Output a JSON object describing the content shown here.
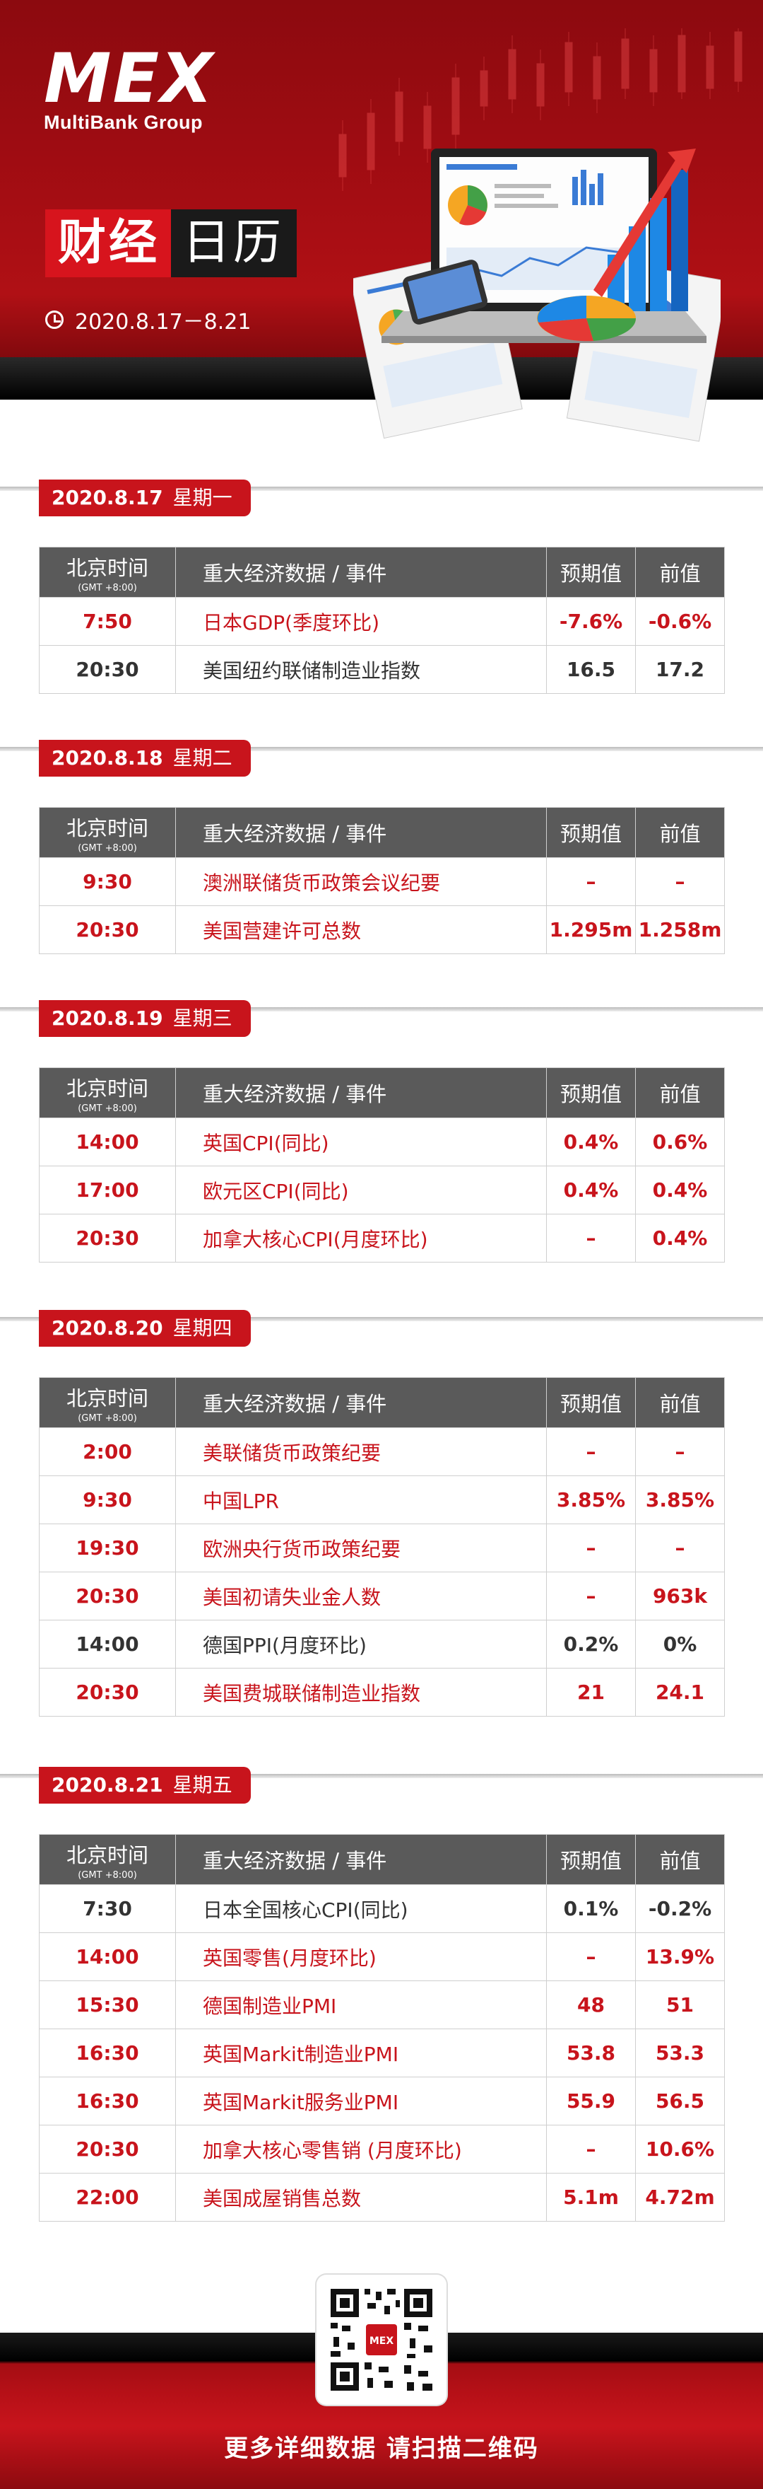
{
  "brand": {
    "logo": "MEX",
    "company": "MultiBank Group"
  },
  "title": {
    "part1": "财经",
    "part2": "日历"
  },
  "date_range": "2020.8.17－8.21",
  "table_headers": {
    "time": "北京时间",
    "time_sub": "(GMT +8:00)",
    "event": "重大经济数据 / 事件",
    "forecast": "预期值",
    "previous": "前值"
  },
  "days": [
    {
      "date": "2020.8.17",
      "weekday": "星期一",
      "rows": [
        {
          "time": "7:50",
          "event": "日本GDP(季度环比)",
          "forecast": "-7.6%",
          "previous": "-0.6%",
          "highlight": true
        },
        {
          "time": "20:30",
          "event": "美国纽约联储制造业指数",
          "forecast": "16.5",
          "previous": "17.2",
          "highlight": false
        }
      ]
    },
    {
      "date": "2020.8.18",
      "weekday": "星期二",
      "rows": [
        {
          "time": "9:30",
          "event": "澳洲联储货币政策会议纪要",
          "forecast": "–",
          "previous": "–",
          "highlight": true
        },
        {
          "time": "20:30",
          "event": "美国营建许可总数",
          "forecast": "1.295m",
          "previous": "1.258m",
          "highlight": true
        }
      ]
    },
    {
      "date": "2020.8.19",
      "weekday": "星期三",
      "rows": [
        {
          "time": "14:00",
          "event": "英国CPI(同比)",
          "forecast": "0.4%",
          "previous": "0.6%",
          "highlight": true
        },
        {
          "time": "17:00",
          "event": "欧元区CPI(同比)",
          "forecast": "0.4%",
          "previous": "0.4%",
          "highlight": true
        },
        {
          "time": "20:30",
          "event": "加拿大核心CPI(月度环比)",
          "forecast": "–",
          "previous": "0.4%",
          "highlight": true
        }
      ]
    },
    {
      "date": "2020.8.20",
      "weekday": "星期四",
      "rows": [
        {
          "time": "2:00",
          "event": "美联储货币政策纪要",
          "forecast": "–",
          "previous": "–",
          "highlight": true
        },
        {
          "time": "9:30",
          "event": "中国LPR",
          "forecast": "3.85%",
          "previous": "3.85%",
          "highlight": true
        },
        {
          "time": "19:30",
          "event": "欧洲央行货币政策纪要",
          "forecast": "–",
          "previous": "–",
          "highlight": true
        },
        {
          "time": "20:30",
          "event": "美国初请失业金人数",
          "forecast": "–",
          "previous": "963k",
          "highlight": true
        },
        {
          "time": "14:00",
          "event": "德国PPI(月度环比)",
          "forecast": "0.2%",
          "previous": "0%",
          "highlight": false
        },
        {
          "time": "20:30",
          "event": "美国费城联储制造业指数",
          "forecast": "21",
          "previous": "24.1",
          "highlight": true
        }
      ]
    },
    {
      "date": "2020.8.21",
      "weekday": "星期五",
      "rows": [
        {
          "time": "7:30",
          "event": "日本全国核心CPI(同比)",
          "forecast": "0.1%",
          "previous": "-0.2%",
          "highlight": false
        },
        {
          "time": "14:00",
          "event": "英国零售(月度环比)",
          "forecast": "–",
          "previous": "13.9%",
          "highlight": true
        },
        {
          "time": "15:30",
          "event": "德国制造业PMI",
          "forecast": "48",
          "previous": "51",
          "highlight": true
        },
        {
          "time": "16:30",
          "event": "英国Markit制造业PMI",
          "forecast": "53.8",
          "previous": "53.3",
          "highlight": true
        },
        {
          "time": "16:30",
          "event": "英国Markit服务业PMI",
          "forecast": "55.9",
          "previous": "56.5",
          "highlight": true
        },
        {
          "time": "20:30",
          "event": "加拿大核心零售销 (月度环比)",
          "forecast": "–",
          "previous": "10.6%",
          "highlight": true
        },
        {
          "time": "22:00",
          "event": "美国成屋销售总数",
          "forecast": "5.1m",
          "previous": "4.72m",
          "highlight": true
        }
      ]
    }
  ],
  "footer": {
    "text": "更多详细数据 请扫描二维码"
  },
  "colors": {
    "brand_red": "#c8141c",
    "header_gray": "#5a5a5a",
    "text_dark": "#333333"
  }
}
